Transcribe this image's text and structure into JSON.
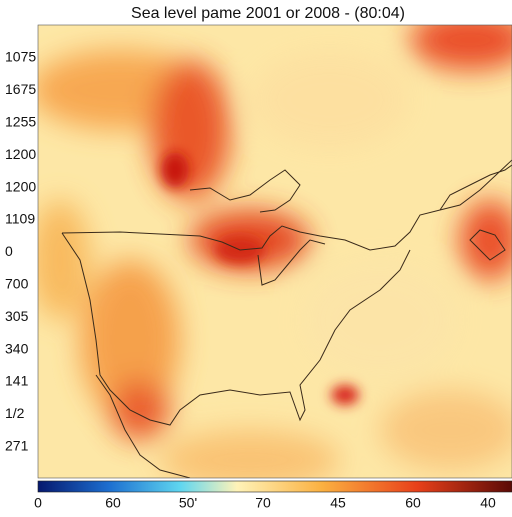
{
  "title": "Sea level pame 2001 or 2008 - (80:04)",
  "y_labels": [
    "1075",
    "1675",
    "1255",
    "1200",
    "1200",
    "1109",
    "0",
    "700",
    "305",
    "340",
    "141",
    "1/2",
    "271"
  ],
  "colorbar_labels": [
    "0",
    "60",
    "50'",
    "70",
    "45",
    "60",
    "40"
  ]
}
